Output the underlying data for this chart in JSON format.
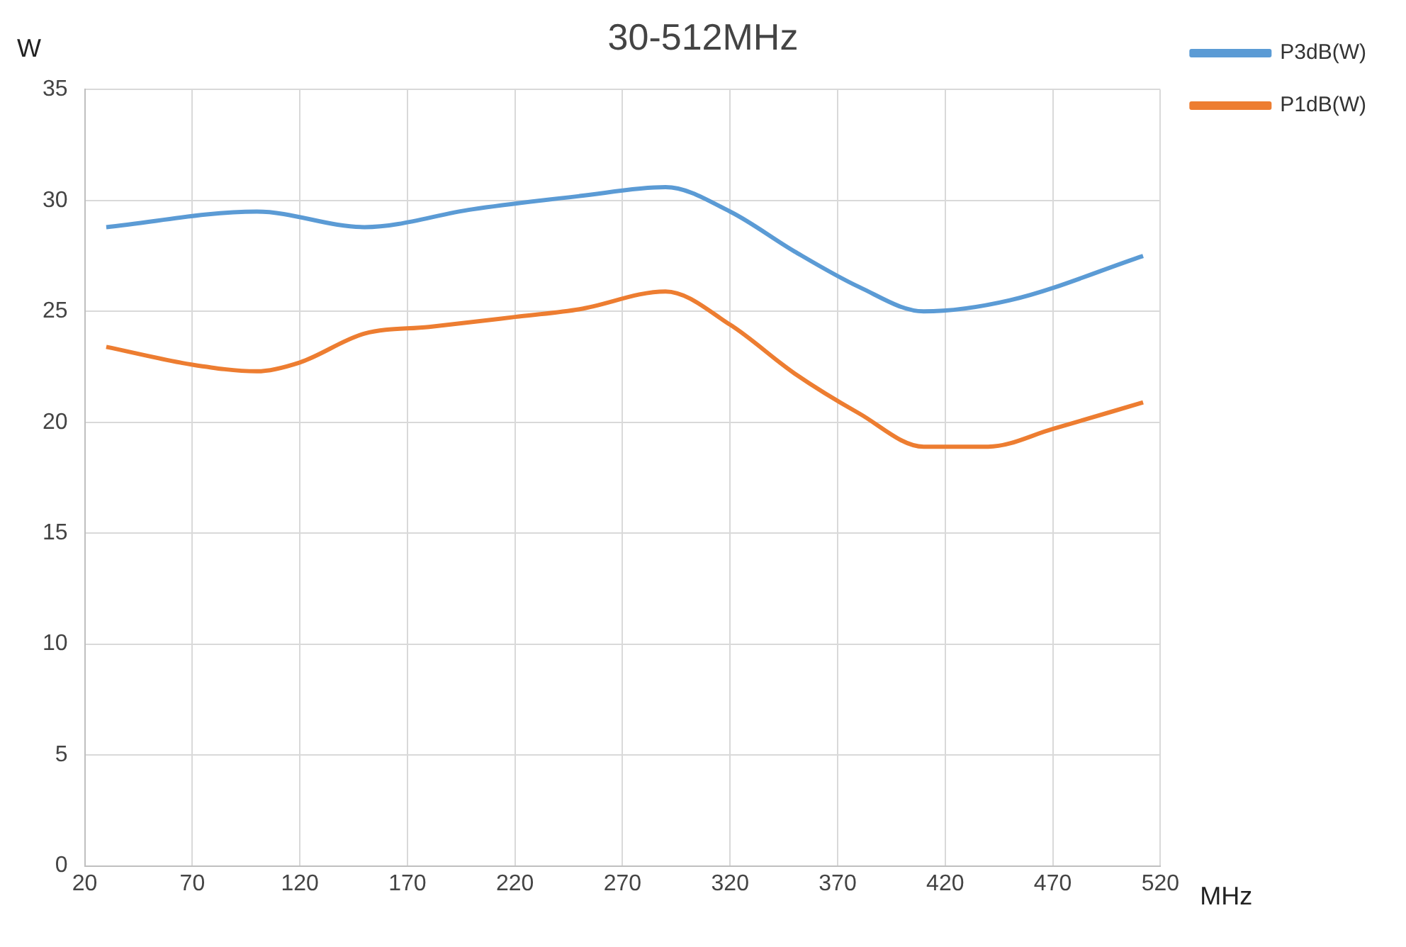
{
  "chart_data": {
    "type": "line",
    "title": "30-512MHz",
    "xlabel": "MHz",
    "ylabel": "W",
    "xlim": [
      20,
      520
    ],
    "xticks": [
      20,
      70,
      120,
      170,
      220,
      270,
      320,
      370,
      420,
      470,
      520
    ],
    "ylim": [
      0,
      35
    ],
    "yticks": [
      0,
      5,
      10,
      15,
      20,
      25,
      30,
      35
    ],
    "grid": true,
    "legend": "top right",
    "marker": "none",
    "line_style": "solid",
    "series": [
      {
        "name": "P3dB(W)",
        "color": "#5b9bd5",
        "x": [
          30,
          100,
          150,
          200,
          250,
          290,
          320,
          350,
          380,
          410,
          450,
          512
        ],
        "values": [
          28.8,
          29.5,
          28.8,
          29.6,
          30.2,
          30.6,
          29.5,
          27.7,
          26.1,
          25.0,
          25.5,
          27.5
        ]
      },
      {
        "name": "P1dB(W)",
        "color": "#ed7d31",
        "x": [
          30,
          70,
          100,
          120,
          150,
          180,
          220,
          250,
          290,
          320,
          350,
          380,
          410,
          440,
          470,
          512
        ],
        "values": [
          23.4,
          22.6,
          22.3,
          22.7,
          24.0,
          24.3,
          24.75,
          25.1,
          25.9,
          24.4,
          22.2,
          20.4,
          18.9,
          18.9,
          19.7,
          20.9
        ]
      }
    ]
  }
}
